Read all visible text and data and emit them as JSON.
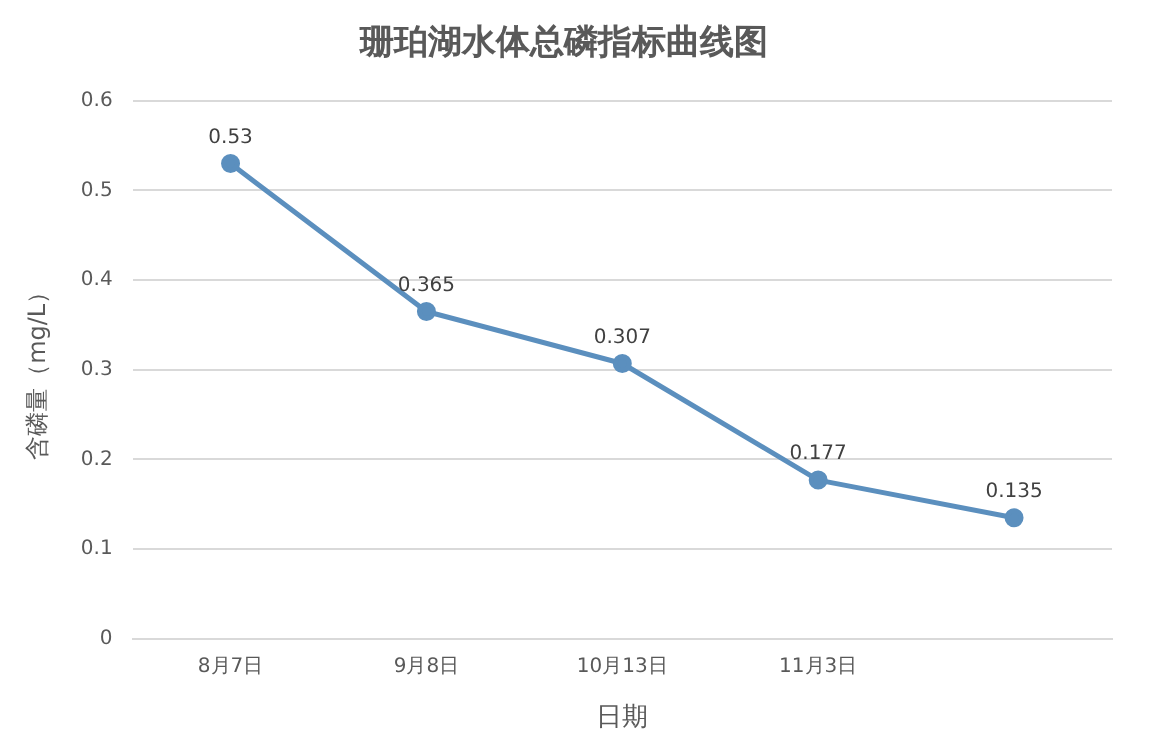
{
  "chart_data": {
    "type": "line",
    "title": "珊珀湖水体总磷指标曲线图",
    "xlabel": "日期",
    "ylabel": "含磷量（mg/L）",
    "categories": [
      "8月7日",
      "9月8日",
      "10月13日",
      "11月3日",
      null
    ],
    "series": [
      {
        "color": "#5b8fbe",
        "values": [
          0.53,
          0.365,
          0.307,
          0.177,
          0.135
        ]
      }
    ],
    "ylim": [
      0,
      0.6
    ],
    "yticks": [
      0,
      0.1,
      0.2,
      0.3,
      0.4,
      0.5,
      0.6
    ],
    "grid": "y",
    "legend": false,
    "marker": "circle",
    "line_style": "solid",
    "data_labels": true
  }
}
